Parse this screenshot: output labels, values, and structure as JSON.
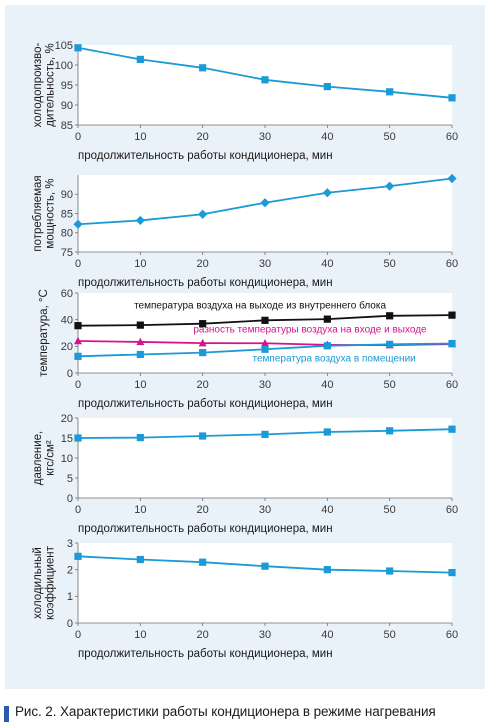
{
  "caption": "Рис. 2. Характеристики работы кондиционера в режиме нагревания",
  "colors": {
    "panel_background": "#e9f1f9",
    "series_blue": "#1a9ad6",
    "series_black": "#111111",
    "series_magenta": "#d4148a",
    "plot_background": "#ffffff",
    "caption_bar": "#2a5aa8"
  },
  "chart_data": [
    {
      "type": "line",
      "ylabel": [
        "холодопроизво-",
        "дительность, %"
      ],
      "xlabel": "продолжительность работы кондиционера, мин",
      "xticks": [
        "0",
        "10",
        "20",
        "30",
        "40",
        "50",
        "60"
      ],
      "yticks": [
        "85",
        "90",
        "95",
        "100",
        "105"
      ],
      "xlim": [
        0,
        60
      ],
      "ylim": [
        85,
        105
      ],
      "grid": false,
      "series": [
        {
          "x": [
            0,
            10,
            20,
            30,
            40,
            50,
            60
          ],
          "values": [
            104.3,
            101.4,
            99.3,
            96.3,
            94.6,
            93.3,
            91.8
          ],
          "color": "#1a9ad6",
          "marker": "square"
        }
      ]
    },
    {
      "type": "line",
      "ylabel": [
        "потребляемая",
        "мощность, %"
      ],
      "xlabel": "продолжительность работы кондиционера, мин",
      "xticks": [
        "0",
        "10",
        "20",
        "30",
        "40",
        "50",
        "60"
      ],
      "yticks": [
        "75",
        "80",
        "85",
        "90"
      ],
      "xlim": [
        0,
        60
      ],
      "ylim": [
        75,
        95
      ],
      "grid": false,
      "series": [
        {
          "x": [
            0,
            10,
            20,
            30,
            40,
            50,
            60
          ],
          "values": [
            82.2,
            83.2,
            84.8,
            87.8,
            90.4,
            92.1,
            94.1
          ],
          "color": "#1a9ad6",
          "marker": "diamond"
        }
      ]
    },
    {
      "type": "line",
      "ylabel": [
        "температура, °С"
      ],
      "xlabel": "продолжительность работы кондиционера, мин",
      "xticks": [
        "0",
        "10",
        "20",
        "30",
        "40",
        "50",
        "60"
      ],
      "yticks": [
        "0",
        "20",
        "40",
        "60"
      ],
      "xlim": [
        0,
        60
      ],
      "ylim": [
        0,
        60
      ],
      "grid": false,
      "series": [
        {
          "name": "температура воздуха на выходе из внутреннего блока",
          "x": [
            0,
            10,
            20,
            30,
            40,
            50,
            60
          ],
          "values": [
            35.5,
            35.9,
            37.0,
            39.5,
            40.4,
            42.9,
            43.4
          ],
          "color": "#111111",
          "marker": "square"
        },
        {
          "name": "разность температуры воздуха на входе и выходе",
          "x": [
            0,
            10,
            20,
            30,
            40,
            50,
            60
          ],
          "values": [
            24.0,
            23.3,
            22.4,
            22.3,
            21.1,
            20.9,
            21.7
          ],
          "color": "#d4148a",
          "marker": "triangle"
        },
        {
          "name": "температура воздуха в помещении",
          "x": [
            0,
            10,
            20,
            30,
            40,
            50,
            60
          ],
          "values": [
            12.5,
            13.9,
            15.3,
            17.8,
            20.4,
            21.5,
            22.1
          ],
          "color": "#1a9ad6",
          "marker": "square"
        }
      ],
      "annotations": [
        {
          "text": "температура воздуха на выходе из внутреннего блока",
          "x": 9,
          "y": 48.5,
          "color": "#111111"
        },
        {
          "text": "разность температуры воздуха на входе и выходе",
          "x": 18.5,
          "y": 30.5,
          "color": "#d4148a"
        },
        {
          "text": "температура воздуха в помещении",
          "x": 28,
          "y": 8.5,
          "color": "#1a9ad6"
        }
      ]
    },
    {
      "type": "line",
      "ylabel": [
        "давление,",
        "кгс/см²"
      ],
      "xlabel": "продолжительность работы кондиционера, мин",
      "xticks": [
        "0",
        "10",
        "20",
        "30",
        "40",
        "50",
        "60"
      ],
      "yticks": [
        "0",
        "5",
        "10",
        "15",
        "20"
      ],
      "xlim": [
        0,
        60
      ],
      "ylim": [
        0,
        20
      ],
      "grid": false,
      "series": [
        {
          "x": [
            0,
            10,
            20,
            30,
            40,
            50,
            60
          ],
          "values": [
            15.0,
            15.1,
            15.5,
            15.9,
            16.5,
            16.8,
            17.2
          ],
          "color": "#1a9ad6",
          "marker": "square"
        }
      ]
    },
    {
      "type": "line",
      "ylabel": [
        "холодильный",
        "коэффициент"
      ],
      "xlabel": "продолжительность работы кондиционера, мин",
      "xticks": [
        "0",
        "10",
        "20",
        "30",
        "40",
        "50",
        "60"
      ],
      "yticks": [
        "0",
        "1",
        "2",
        "3"
      ],
      "xlim": [
        0,
        60
      ],
      "ylim": [
        0,
        3
      ],
      "grid": false,
      "series": [
        {
          "x": [
            0,
            10,
            20,
            30,
            40,
            50,
            60
          ],
          "values": [
            2.5,
            2.38,
            2.28,
            2.13,
            2.0,
            1.95,
            1.89
          ],
          "color": "#1a9ad6",
          "marker": "square"
        }
      ]
    }
  ]
}
